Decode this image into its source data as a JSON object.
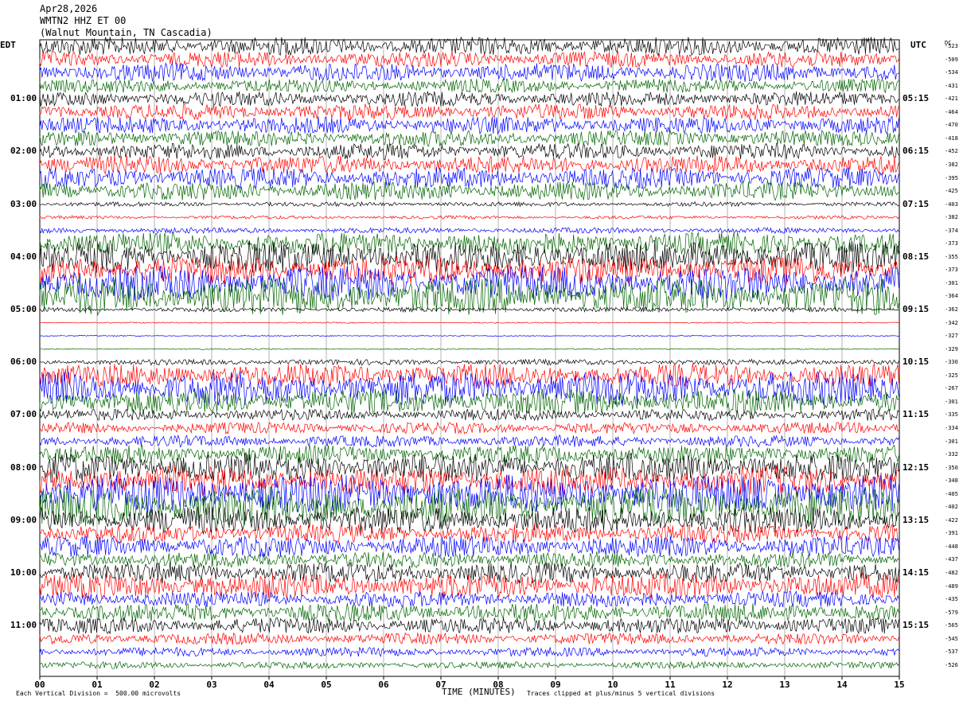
{
  "header": {
    "date": "Apr28,2026",
    "station": "WMTN2 HHZ ET 00",
    "location": "(Walnut Mountain, TN Cascadia)"
  },
  "left_axis_title": "EDT",
  "right_axis_title": "UTC",
  "dc_title": "DC",
  "footer": {
    "scale_note": "Each Vertical Division =  500.00 microvolts",
    "clip_note": "Traces clipped at plus/minus 5 vertical divisions"
  },
  "colors": {
    "trace_cycle": [
      "#000000",
      "#ff0000",
      "#0000ff",
      "#006400"
    ],
    "grid": "#808080"
  },
  "chart_data": {
    "type": "line",
    "title": "",
    "xlabel": "TIME (MINUTES)",
    "xlim": [
      0,
      15
    ],
    "x_ticks": [
      "00",
      "01",
      "02",
      "03",
      "04",
      "05",
      "06",
      "07",
      "08",
      "09",
      "10",
      "11",
      "12",
      "13",
      "14",
      "15"
    ],
    "left_hour_labels": [
      "01:00",
      "02:00",
      "03:00",
      "04:00",
      "05:00",
      "06:00",
      "07:00",
      "08:00",
      "09:00",
      "10:00",
      "11:00"
    ],
    "right_hour_labels": [
      "05:15",
      "06:15",
      "07:15",
      "08:15",
      "09:15",
      "10:15",
      "11:15",
      "12:15",
      "13:15",
      "14:15",
      "15:15"
    ],
    "traces_per_hour": 4,
    "dc_offsets": [
      -523,
      -509,
      -534,
      -431,
      -421,
      -464,
      -470,
      -418,
      -452,
      -382,
      -395,
      -425,
      -403,
      -382,
      -374,
      -373,
      -355,
      -373,
      -301,
      -364,
      -362,
      -342,
      -327,
      -329,
      -330,
      -325,
      -267,
      -301,
      -335,
      -334,
      -301,
      -332,
      -350,
      -348,
      -405,
      -402,
      -422,
      -391,
      -448,
      -437,
      -482,
      -489,
      -435,
      -579,
      -565,
      -545,
      -537,
      -526
    ],
    "trace_amplitude_divisions": [
      1.6,
      1.4,
      1.6,
      1.2,
      1.3,
      1.4,
      1.5,
      1.4,
      1.4,
      1.6,
      1.8,
      1.6,
      0.4,
      0.3,
      0.5,
      2.0,
      2.8,
      2.5,
      3.0,
      3.2,
      0.4,
      0.1,
      0.1,
      0.1,
      0.5,
      2.0,
      3.0,
      2.2,
      1.0,
      1.0,
      1.0,
      1.6,
      2.6,
      2.6,
      3.4,
      3.4,
      2.4,
      1.6,
      1.8,
      1.4,
      1.8,
      2.2,
      1.4,
      1.6,
      1.4,
      1.0,
      0.8,
      0.6
    ]
  }
}
